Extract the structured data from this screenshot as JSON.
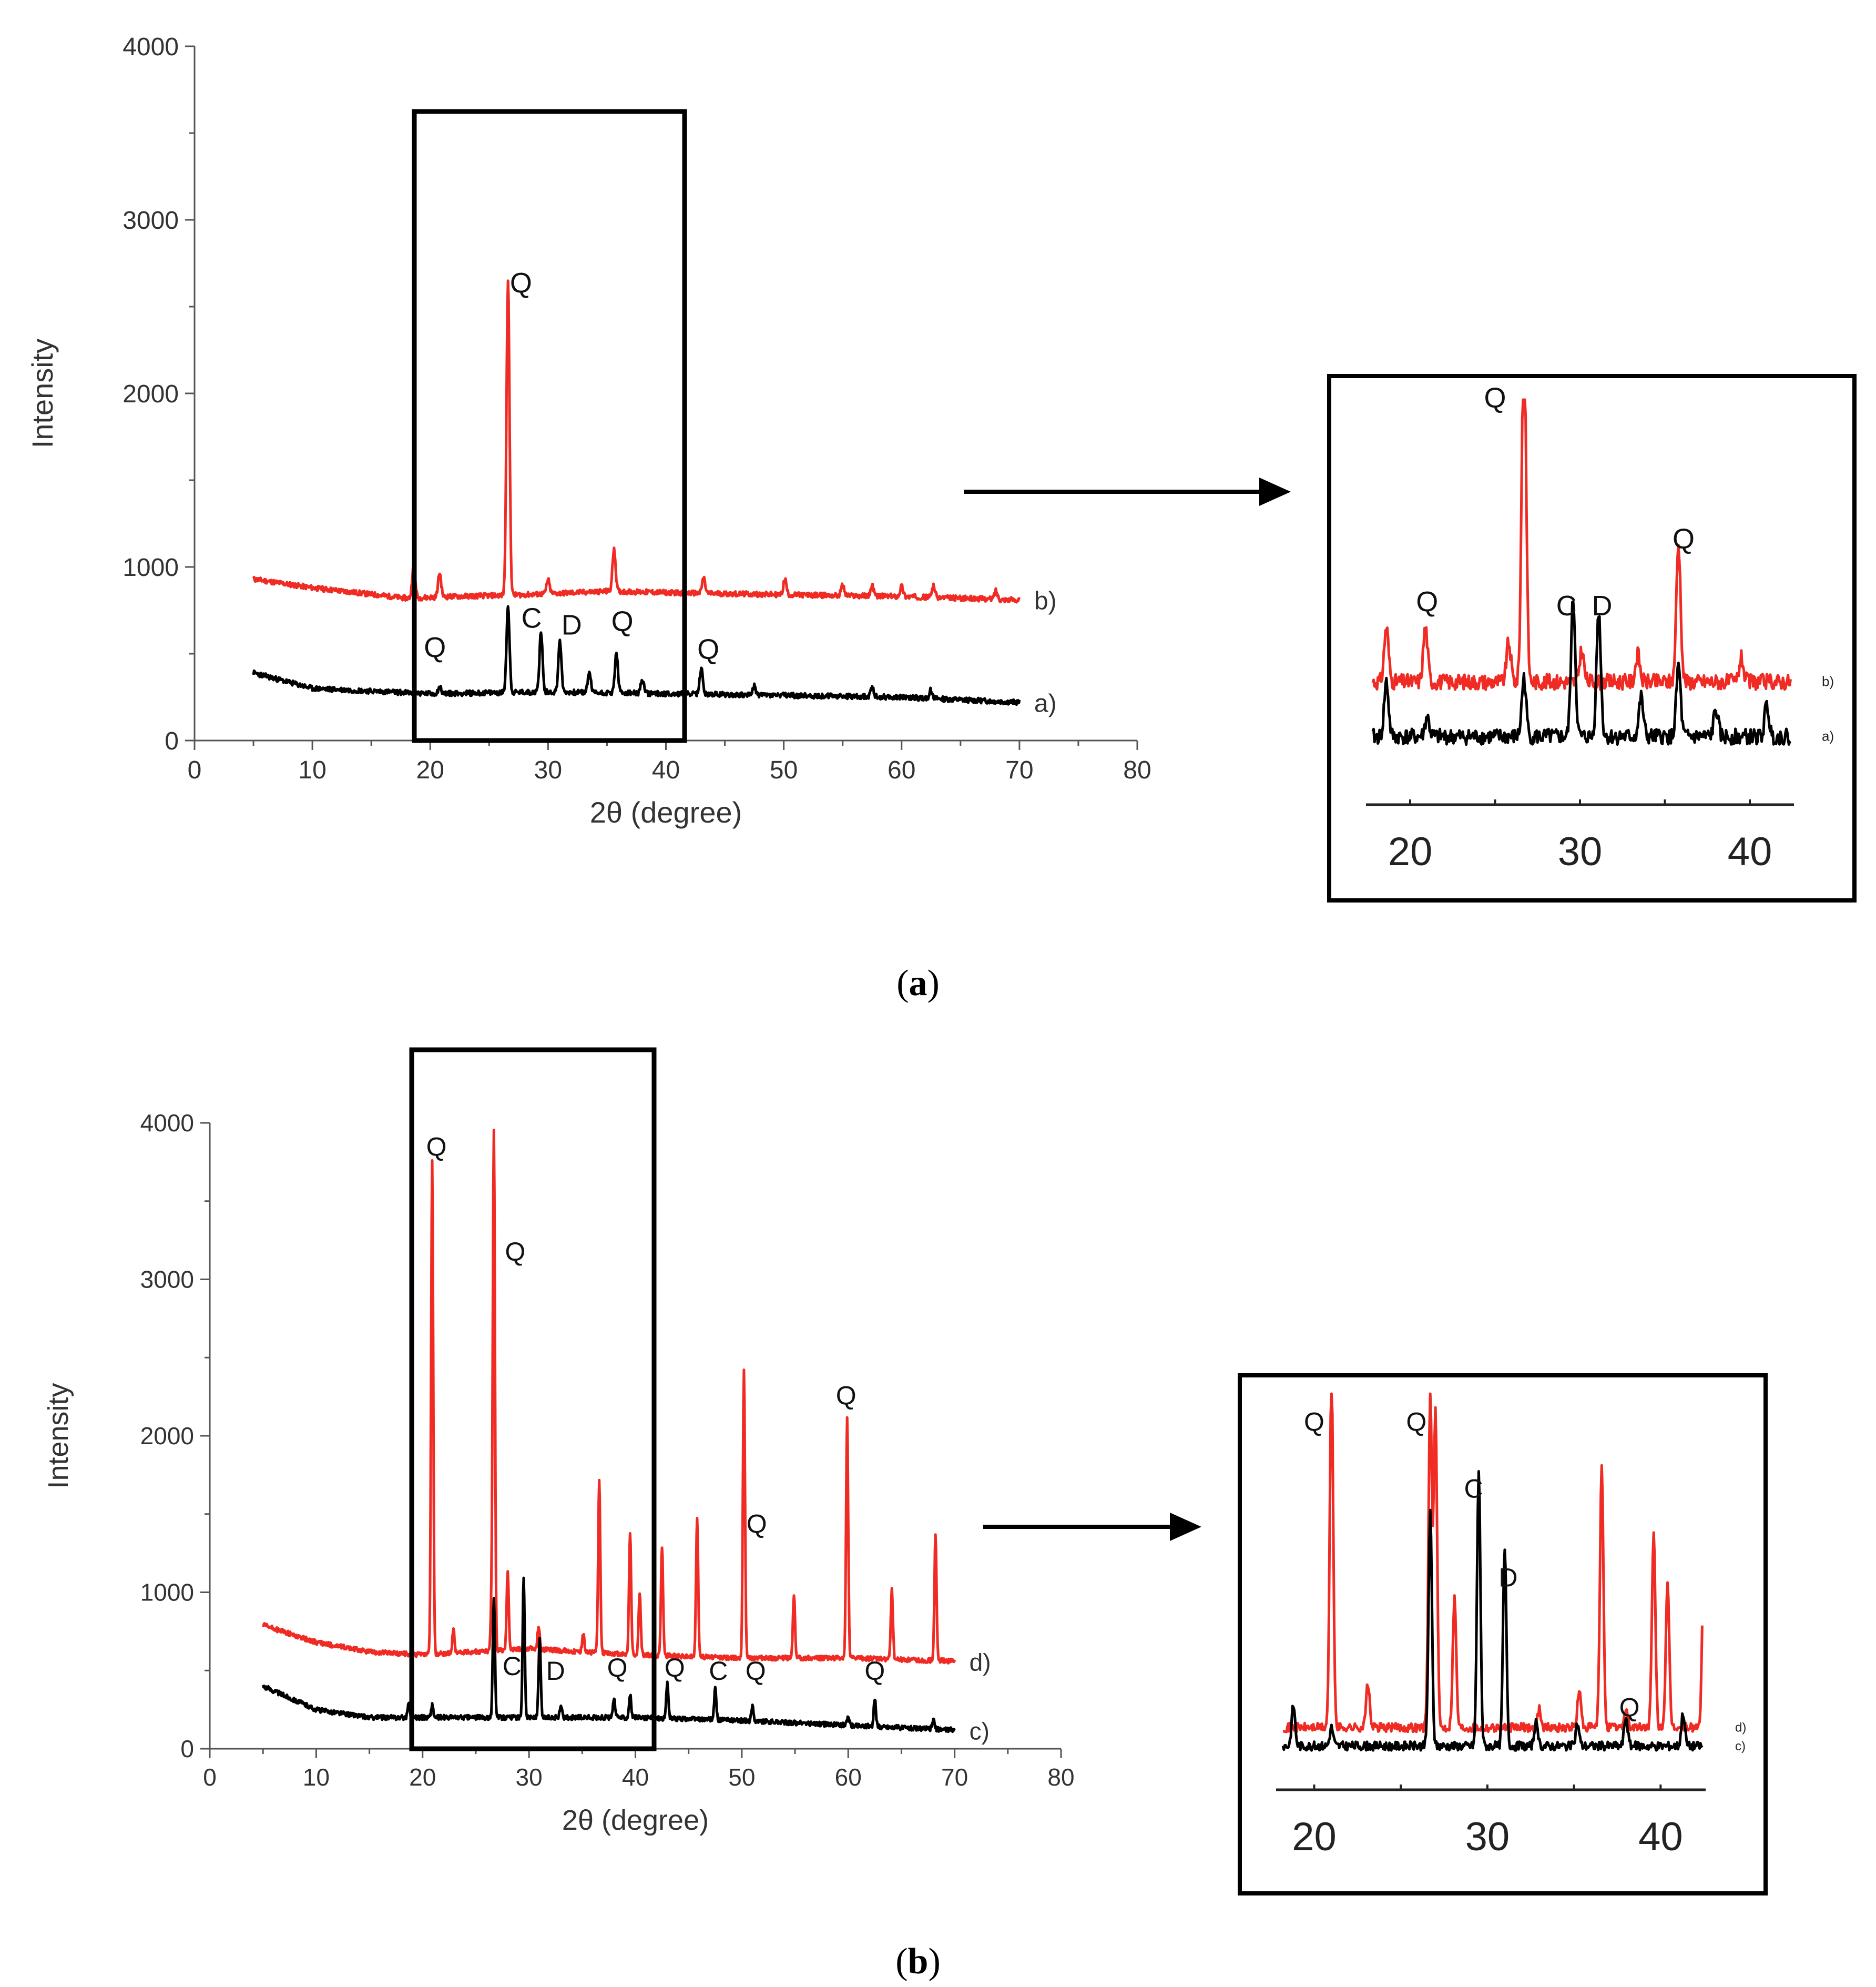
{
  "colors": {
    "series_red": "#ef2b24",
    "series_black": "#000000",
    "axis": "#555555",
    "box": "#000000"
  },
  "captions": {
    "a_open": "(",
    "a_letter": "a",
    "a_close": ")",
    "b_open": "(",
    "b_letter": "b",
    "b_close": ")"
  },
  "chart_data": [
    {
      "id": "panel_a_main",
      "type": "line",
      "xlabel": "2θ (degree)",
      "ylabel": "Intensity",
      "xlim": [
        0,
        80
      ],
      "ylim": [
        0,
        4000
      ],
      "xticks": [
        0,
        10,
        20,
        30,
        40,
        50,
        60,
        70,
        80
      ],
      "yticks": [
        0,
        1000,
        2000,
        3000,
        4000
      ],
      "zoom_box_x": [
        19,
        42
      ],
      "series": [
        {
          "name": "b)",
          "color": "#ef2b24",
          "baseline": [
            [
              5,
              930
            ],
            [
              10,
              880
            ],
            [
              18,
              820
            ],
            [
              22,
              830
            ],
            [
              28,
              840
            ],
            [
              35,
              860
            ],
            [
              42,
              850
            ],
            [
              50,
              840
            ],
            [
              60,
              830
            ],
            [
              70,
              810
            ]
          ],
          "peaks": [
            [
              18.6,
              200
            ],
            [
              20.8,
              140
            ],
            [
              26.6,
              1820
            ],
            [
              30.0,
              80
            ],
            [
              35.6,
              250
            ],
            [
              43.2,
              90
            ],
            [
              50.1,
              90
            ],
            [
              55.0,
              60
            ],
            [
              57.5,
              60
            ],
            [
              60.0,
              60
            ],
            [
              62.7,
              70
            ],
            [
              68.0,
              50
            ]
          ]
        },
        {
          "name": "a)",
          "color": "#000000",
          "baseline": [
            [
              5,
              390
            ],
            [
              10,
              300
            ],
            [
              20,
              270
            ],
            [
              30,
              280
            ],
            [
              40,
              270
            ],
            [
              50,
              260
            ],
            [
              60,
              250
            ],
            [
              70,
              220
            ]
          ],
          "peaks": [
            [
              20.8,
              40
            ],
            [
              26.6,
              500
            ],
            [
              29.4,
              350
            ],
            [
              31.0,
              300
            ],
            [
              33.5,
              120
            ],
            [
              35.8,
              230
            ],
            [
              38.0,
              80
            ],
            [
              43.0,
              150
            ],
            [
              47.5,
              50
            ],
            [
              57.5,
              60
            ],
            [
              62.5,
              50
            ]
          ]
        }
      ],
      "annotations": [
        {
          "text": "Q",
          "x": 27.7,
          "y": 2580
        },
        {
          "text": "Q",
          "x": 20.4,
          "y": 480
        },
        {
          "text": "C",
          "x": 28.6,
          "y": 650
        },
        {
          "text": "D",
          "x": 32.0,
          "y": 610
        },
        {
          "text": "Q",
          "x": 36.3,
          "y": 630
        },
        {
          "text": "Q",
          "x": 43.6,
          "y": 470
        }
      ]
    },
    {
      "id": "panel_a_zoom",
      "type": "line",
      "xlabel": "",
      "ylabel": "",
      "xlim": [
        17.4,
        42.6
      ],
      "xticks": [
        20,
        30,
        40
      ],
      "series": [
        {
          "name": "b)",
          "color": "#ef2b24",
          "baseline": 0.28,
          "peaks": [
            [
              18.6,
              0.14
            ],
            [
              20.9,
              0.14
            ],
            [
              25.8,
              0.1
            ],
            [
              26.7,
              0.92
            ],
            [
              30.1,
              0.08
            ],
            [
              33.4,
              0.07
            ],
            [
              35.8,
              0.35
            ],
            [
              39.5,
              0.06
            ]
          ]
        },
        {
          "name": "a)",
          "color": "#000000",
          "baseline": 0.14,
          "peaks": [
            [
              18.6,
              0.14
            ],
            [
              21.0,
              0.05
            ],
            [
              26.7,
              0.15
            ],
            [
              29.6,
              0.35
            ],
            [
              31.1,
              0.32
            ],
            [
              33.6,
              0.1
            ],
            [
              35.8,
              0.18
            ],
            [
              38.0,
              0.07
            ],
            [
              41.0,
              0.08
            ]
          ]
        }
      ],
      "annotations": [
        {
          "text": "Q",
          "x": 25.0,
          "y": 0.98
        },
        {
          "text": "Q",
          "x": 21.0,
          "y": 0.46
        },
        {
          "text": "C",
          "x": 29.2,
          "y": 0.45
        },
        {
          "text": "D",
          "x": 31.3,
          "y": 0.45
        },
        {
          "text": "Q",
          "x": 36.1,
          "y": 0.62
        }
      ]
    },
    {
      "id": "panel_b_main",
      "type": "line",
      "xlabel": "2θ (degree)",
      "ylabel": "Intensity",
      "xlim": [
        0,
        80
      ],
      "ylim": [
        0,
        4000
      ],
      "xticks": [
        0,
        10,
        20,
        30,
        40,
        50,
        60,
        70,
        80
      ],
      "yticks": [
        0,
        1000,
        2000,
        3000,
        4000
      ],
      "zoom_box_x": [
        19,
        42
      ],
      "series": [
        {
          "name": "d)",
          "color": "#ef2b24",
          "baseline": [
            [
              5,
              790
            ],
            [
              10,
              680
            ],
            [
              15,
              620
            ],
            [
              20,
              600
            ],
            [
              25,
              620
            ],
            [
              30,
              640
            ],
            [
              35,
              620
            ],
            [
              40,
              600
            ],
            [
              50,
              580
            ],
            [
              60,
              580
            ],
            [
              70,
              560
            ]
          ],
          "peaks": [
            [
              20.9,
              3150
            ],
            [
              22.9,
              150
            ],
            [
              26.5,
              300
            ],
            [
              26.7,
              3300
            ],
            [
              28.0,
              500
            ],
            [
              30.9,
              150
            ],
            [
              35.1,
              120
            ],
            [
              36.6,
              1100
            ],
            [
              39.5,
              780
            ],
            [
              40.4,
              400
            ],
            [
              42.5,
              700
            ],
            [
              45.8,
              900
            ],
            [
              50.2,
              1850
            ],
            [
              54.9,
              400
            ],
            [
              59.9,
              1530
            ],
            [
              64.1,
              450
            ],
            [
              68.2,
              800
            ]
          ]
        },
        {
          "name": "c)",
          "color": "#000000",
          "baseline": [
            [
              5,
              400
            ],
            [
              10,
              250
            ],
            [
              15,
              200
            ],
            [
              20,
              200
            ],
            [
              30,
              200
            ],
            [
              40,
              200
            ],
            [
              50,
              180
            ],
            [
              60,
              150
            ],
            [
              70,
              120
            ]
          ],
          "peaks": [
            [
              18.7,
              100
            ],
            [
              20.9,
              80
            ],
            [
              26.7,
              770
            ],
            [
              29.5,
              890
            ],
            [
              31.0,
              500
            ],
            [
              33.0,
              80
            ],
            [
              38.0,
              120
            ],
            [
              39.5,
              150
            ],
            [
              43.0,
              230
            ],
            [
              47.5,
              200
            ],
            [
              51.0,
              100
            ],
            [
              60.0,
              60
            ],
            [
              62.5,
              180
            ],
            [
              68.0,
              60
            ]
          ]
        }
      ],
      "annotations": [
        {
          "text": "Q",
          "x": 21.3,
          "y": 3790
        },
        {
          "text": "Q",
          "x": 28.7,
          "y": 3120
        },
        {
          "text": "Q",
          "x": 59.8,
          "y": 2200
        },
        {
          "text": "Q",
          "x": 51.4,
          "y": 1380
        },
        {
          "text": "C",
          "x": 28.4,
          "y": 470
        },
        {
          "text": "D",
          "x": 32.5,
          "y": 440
        },
        {
          "text": "Q",
          "x": 38.3,
          "y": 460
        },
        {
          "text": "Q",
          "x": 43.7,
          "y": 460
        },
        {
          "text": "C",
          "x": 47.8,
          "y": 440
        },
        {
          "text": "Q",
          "x": 51.3,
          "y": 440
        },
        {
          "text": "Q",
          "x": 62.5,
          "y": 440
        }
      ]
    },
    {
      "id": "panel_b_zoom",
      "type": "line",
      "xlabel": "",
      "ylabel": "",
      "xlim": [
        17.8,
        42.6
      ],
      "xticks": [
        20,
        30,
        40
      ],
      "series": [
        {
          "name": "d)",
          "color": "#ef2b24",
          "baseline": 0.1,
          "peaks": [
            [
              21.0,
              0.95
            ],
            [
              23.1,
              0.12
            ],
            [
              26.7,
              0.9
            ],
            [
              27.0,
              0.85
            ],
            [
              28.1,
              0.35
            ],
            [
              33.0,
              0.05
            ],
            [
              35.3,
              0.1
            ],
            [
              36.6,
              0.7
            ],
            [
              38.0,
              0.05
            ],
            [
              39.6,
              0.52
            ],
            [
              40.4,
              0.38
            ],
            [
              42.5,
              0.45
            ]
          ]
        },
        {
          "name": "c)",
          "color": "#000000",
          "baseline": 0.05,
          "peaks": [
            [
              18.8,
              0.11
            ],
            [
              21.0,
              0.05
            ],
            [
              26.7,
              0.63
            ],
            [
              29.5,
              0.74
            ],
            [
              31.0,
              0.53
            ],
            [
              32.8,
              0.06
            ],
            [
              35.2,
              0.06
            ],
            [
              38.0,
              0.08
            ],
            [
              41.3,
              0.09
            ]
          ]
        }
      ],
      "annotations": [
        {
          "text": "Q",
          "x": 20.0,
          "y": 0.9
        },
        {
          "text": "Q",
          "x": 25.9,
          "y": 0.9
        },
        {
          "text": "C",
          "x": 29.2,
          "y": 0.72
        },
        {
          "text": "D",
          "x": 31.2,
          "y": 0.48
        },
        {
          "text": "Q",
          "x": 38.2,
          "y": 0.13
        }
      ]
    }
  ]
}
